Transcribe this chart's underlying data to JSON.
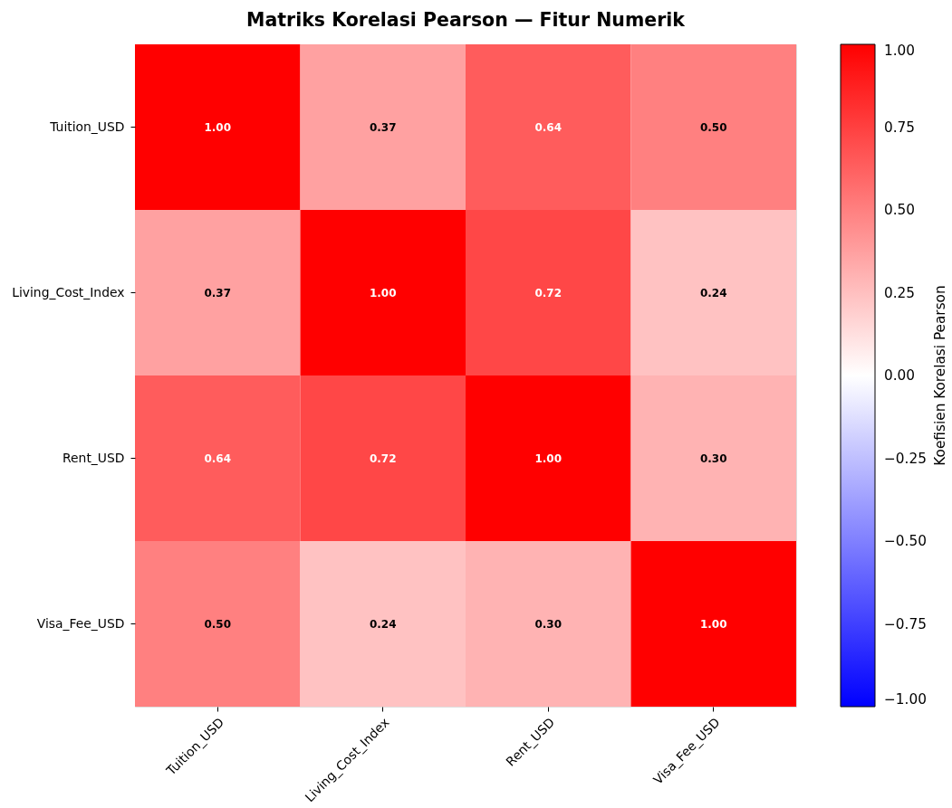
{
  "chart_data": {
    "type": "heatmap",
    "title": "Matriks Korelasi Pearson — Fitur Numerik",
    "categories": [
      "Tuition_USD",
      "Living_Cost_Index",
      "Rent_USD",
      "Visa_Fee_USD"
    ],
    "y_categories": [
      "Tuition_USD",
      "Living_Cost_Index",
      "Rent_USD",
      "Visa_Fee_USD"
    ],
    "cells": [
      [
        1.0,
        0.37,
        0.64,
        0.5
      ],
      [
        0.37,
        1.0,
        0.72,
        0.24
      ],
      [
        0.64,
        0.72,
        1.0,
        0.3
      ],
      [
        0.5,
        0.24,
        0.3,
        1.0
      ]
    ],
    "cell_labels": [
      [
        "1.00",
        "0.37",
        "0.64",
        "0.50"
      ],
      [
        "0.37",
        "1.00",
        "0.72",
        "0.24"
      ],
      [
        "0.64",
        "0.72",
        "1.00",
        "0.30"
      ],
      [
        "0.50",
        "0.24",
        "0.30",
        "1.00"
      ]
    ],
    "clabel": "Koefisien Korelasi Pearson",
    "clim": [
      -1,
      1
    ],
    "cticks": [
      {
        "value": -1,
        "label": "−1.00"
      },
      {
        "value": -0.75,
        "label": "−0.75"
      },
      {
        "value": -0.5,
        "label": "−0.50"
      },
      {
        "value": -0.25,
        "label": "−0.25"
      },
      {
        "value": 0,
        "label": "0.00"
      },
      {
        "value": 0.25,
        "label": "0.25"
      },
      {
        "value": 0.5,
        "label": "0.50"
      },
      {
        "value": 0.75,
        "label": "0.75"
      },
      {
        "value": 1,
        "label": "1.00"
      }
    ]
  }
}
